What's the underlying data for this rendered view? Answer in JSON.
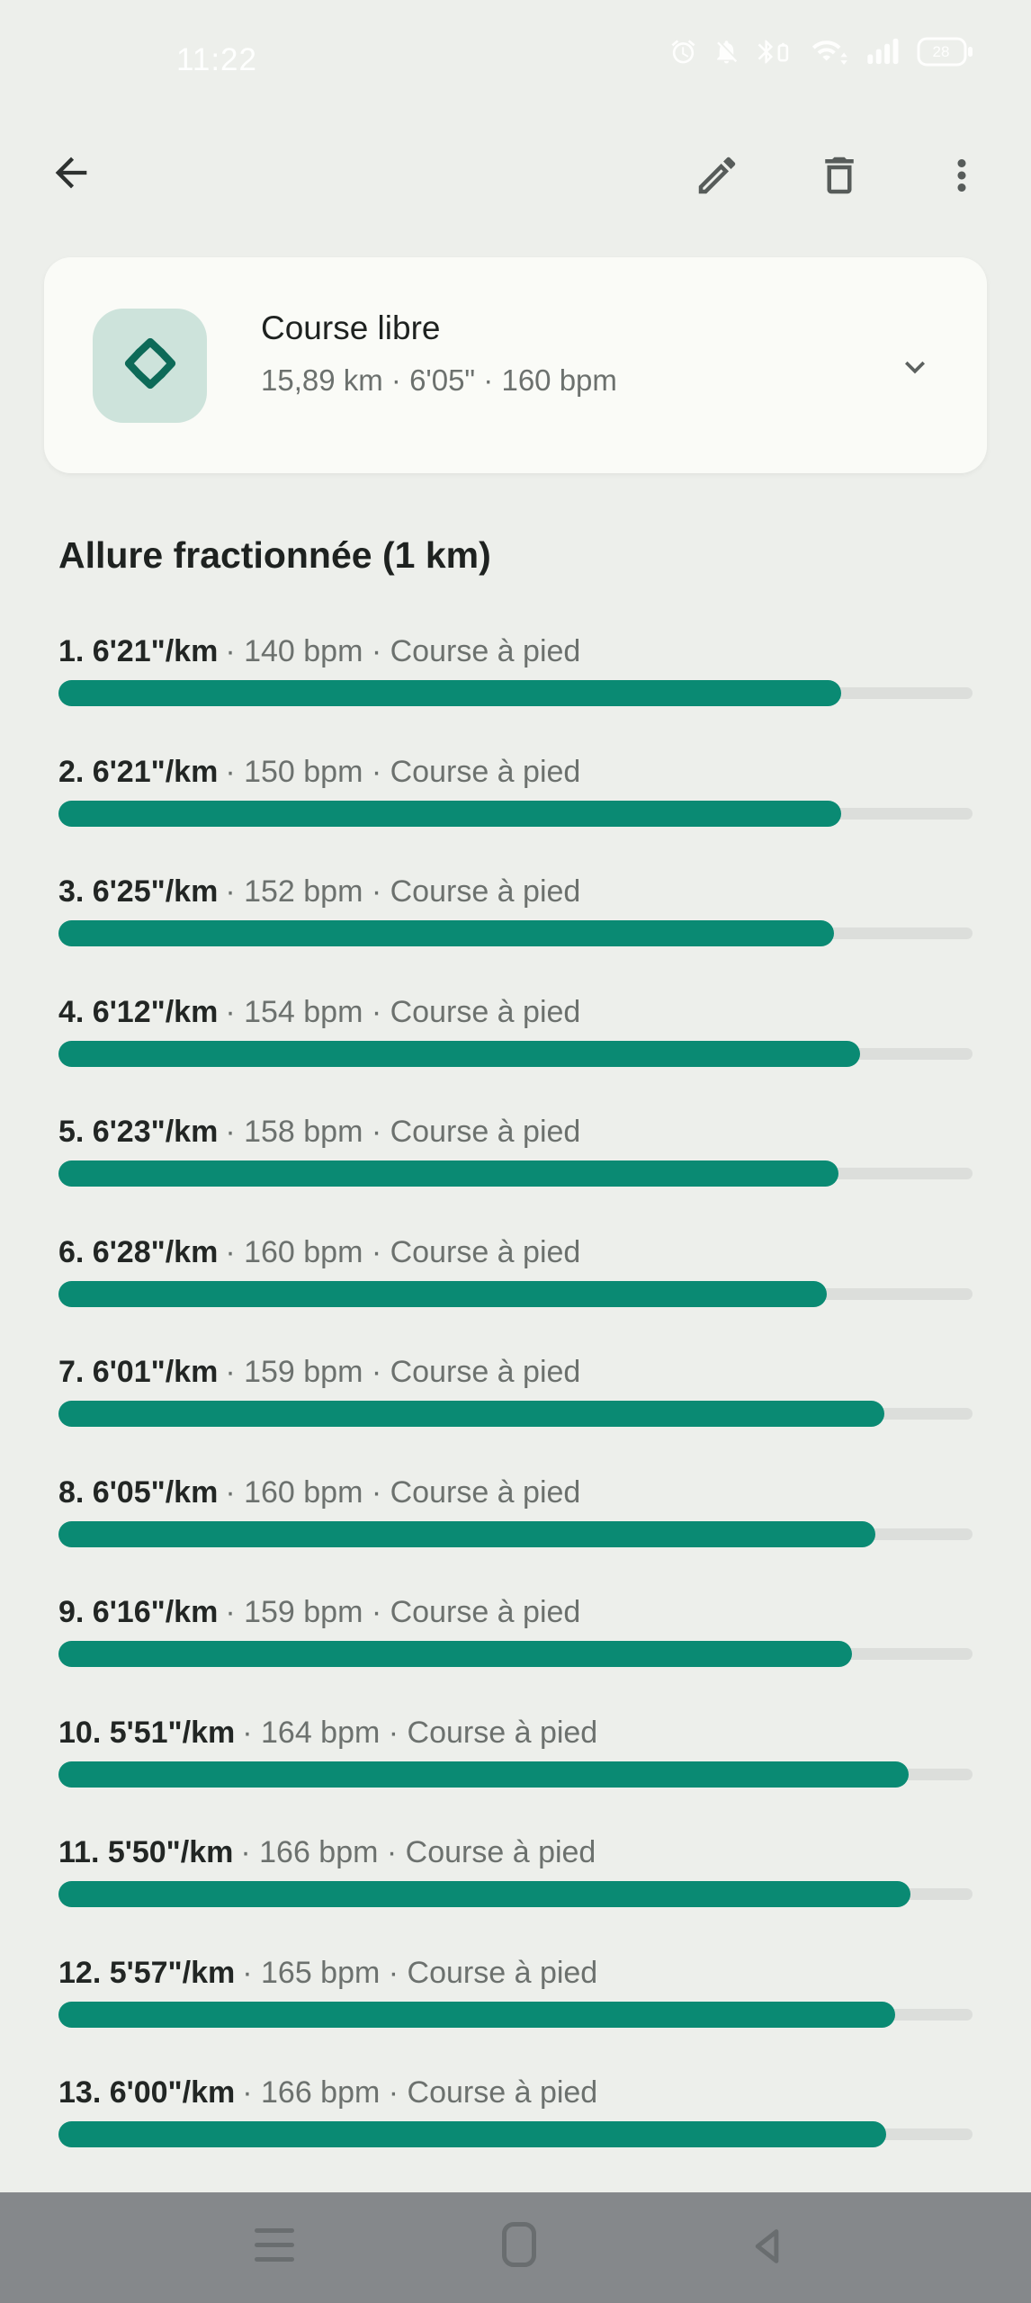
{
  "status_bar": {
    "time": "11:22",
    "battery_level": "28",
    "icons": [
      "alarm-icon",
      "notifications-off-icon",
      "bluetooth-connected-icon",
      "wifi-icon",
      "signal-strength-icon",
      "battery-icon"
    ]
  },
  "app_bar": {
    "icons": [
      "back-arrow-icon",
      "edit-pencil-icon",
      "delete-trash-icon",
      "more-options-icon"
    ]
  },
  "activity_card": {
    "icon": "free-run-directions-icon",
    "title": "Course libre",
    "stats": "15,89 km · 6'05\" · 160 bpm",
    "expander_icon": "chevron-down-icon"
  },
  "section": {
    "title": "Allure fractionnée (1 km)"
  },
  "splits": {
    "rows": [
      {
        "label": "1. 6'21\"/km",
        "details": "· 140 bpm · Course à pied",
        "fill_percent": 85.6
      },
      {
        "label": "2. 6'21\"/km",
        "details": "· 150 bpm · Course à pied",
        "fill_percent": 85.6
      },
      {
        "label": "3. 6'25\"/km",
        "details": "· 152 bpm · Course à pied",
        "fill_percent": 84.8
      },
      {
        "label": "4. 6'12\"/km",
        "details": "· 154 bpm · Course à pied",
        "fill_percent": 87.7
      },
      {
        "label": "5. 6'23\"/km",
        "details": "· 158 bpm · Course à pied",
        "fill_percent": 85.3
      },
      {
        "label": "6. 6'28\"/km",
        "details": "· 160 bpm · Course à pied",
        "fill_percent": 84.1
      },
      {
        "label": "7. 6'01\"/km",
        "details": "· 159 bpm · Course à pied",
        "fill_percent": 90.4
      },
      {
        "label": "8. 6'05\"/km",
        "details": "· 160 bpm · Course à pied",
        "fill_percent": 89.4
      },
      {
        "label": "9. 6'16\"/km",
        "details": "· 159 bpm · Course à pied",
        "fill_percent": 86.8
      },
      {
        "label": "10. 5'51\"/km",
        "details": "· 164 bpm · Course à pied",
        "fill_percent": 93.0
      },
      {
        "label": "11. 5'50\"/km",
        "details": "· 166 bpm · Course à pied",
        "fill_percent": 93.2
      },
      {
        "label": "12. 5'57\"/km",
        "details": "· 165 bpm · Course à pied",
        "fill_percent": 91.5
      },
      {
        "label": "13. 6'00\"/km",
        "details": "· 166 bpm · Course à pied",
        "fill_percent": 90.6
      }
    ]
  },
  "nav_bar": {
    "icons": [
      "recent-apps-icon",
      "home-icon",
      "back-icon"
    ]
  },
  "colors": {
    "page_bg": "#edefeb",
    "card_bg": "#fafbf7",
    "tile_bg": "#cde3db",
    "bar_fill_teal": "#0a8a73",
    "tile_chevron_teal": "#0d6a58",
    "bar_track": "#dcdedb",
    "text_dark": "#1e2220",
    "text_gray": "#6c716e",
    "nav_bg": "#85888b",
    "nav_icon": "#696d6f"
  }
}
